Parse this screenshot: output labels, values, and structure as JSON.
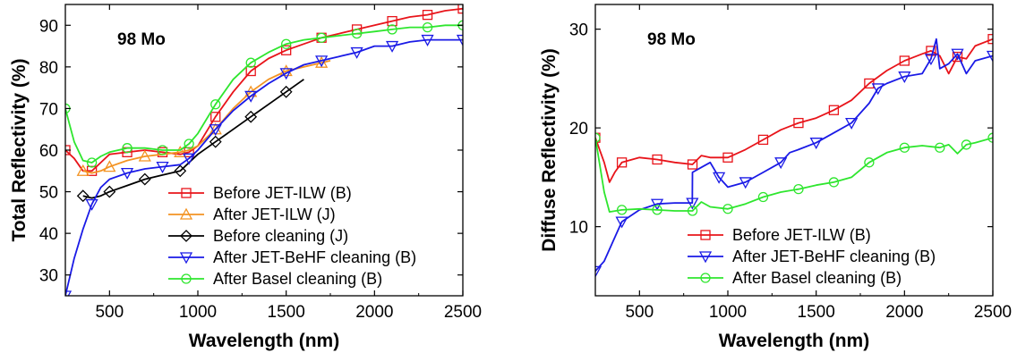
{
  "chart_data": [
    {
      "type": "line",
      "annotation": "98 Mo",
      "xlabel": "Wavelength (nm)",
      "ylabel": "Total Reflectivity (%)",
      "xlim": [
        250,
        2500
      ],
      "ylim": [
        25,
        95
      ],
      "xticks": [
        500,
        1000,
        1500,
        2000,
        2500
      ],
      "yticks": [
        30,
        40,
        50,
        60,
        70,
        80,
        90
      ],
      "legend_position": "lower-right",
      "series": [
        {
          "name": "Before JET-ILW (B)",
          "color": "#e8141a",
          "marker": "square",
          "x": [
            250,
            300,
            350,
            400,
            450,
            500,
            600,
            700,
            800,
            900,
            950,
            1000,
            1100,
            1200,
            1300,
            1400,
            1500,
            1600,
            1700,
            1800,
            1900,
            2000,
            2100,
            2200,
            2300,
            2400,
            2500
          ],
          "y": [
            60,
            58,
            55,
            55,
            57,
            59,
            59.5,
            60,
            59.5,
            59,
            59.5,
            61,
            68,
            74,
            79,
            82,
            84,
            85.5,
            87,
            88,
            89,
            90,
            91,
            92,
            92.5,
            93.5,
            94
          ]
        },
        {
          "name": "After JET-ILW (J)",
          "color": "#f39322",
          "marker": "triangle-up",
          "x": [
            350,
            400,
            450,
            500,
            600,
            700,
            800,
            900,
            950,
            1000,
            1100,
            1200,
            1300,
            1400,
            1500,
            1600,
            1700,
            1750
          ],
          "y": [
            55,
            54.5,
            55,
            56,
            57.5,
            58.5,
            59,
            59.5,
            60,
            61,
            65,
            70,
            74,
            77,
            79,
            80,
            81,
            81.5
          ]
        },
        {
          "name": "Before cleaning (J)",
          "color": "#000000",
          "marker": "diamond",
          "x": [
            350,
            400,
            450,
            500,
            600,
            700,
            800,
            900,
            950,
            1000,
            1100,
            1200,
            1300,
            1400,
            1500,
            1550,
            1600
          ],
          "y": [
            49,
            48.5,
            49,
            50,
            51.5,
            53,
            54,
            55,
            57,
            59,
            62,
            65,
            68,
            71,
            74,
            75.5,
            77
          ]
        },
        {
          "name": "After JET-BeHF cleaning (B)",
          "color": "#1a1ae6",
          "marker": "triangle-down",
          "x": [
            250,
            300,
            350,
            400,
            450,
            500,
            600,
            700,
            800,
            900,
            950,
            1000,
            1100,
            1200,
            1300,
            1400,
            1500,
            1600,
            1700,
            1800,
            1900,
            2000,
            2100,
            2200,
            2300,
            2400,
            2500
          ],
          "y": [
            25,
            34,
            41,
            47,
            51,
            53,
            54.5,
            55.5,
            56,
            56.5,
            58,
            60,
            65,
            69.5,
            73,
            76,
            78.5,
            80.5,
            81.5,
            82.5,
            83.5,
            85,
            85,
            86,
            86.5,
            86.5,
            86.5
          ]
        },
        {
          "name": "After Basel cleaning (B)",
          "color": "#2ee62e",
          "marker": "circle",
          "x": [
            250,
            275,
            300,
            350,
            400,
            450,
            500,
            600,
            700,
            800,
            900,
            950,
            1000,
            1100,
            1200,
            1300,
            1400,
            1500,
            1600,
            1700,
            1800,
            1900,
            2000,
            2100,
            2200,
            2300,
            2400,
            2500
          ],
          "y": [
            70,
            66,
            62,
            57.5,
            57,
            58.5,
            59.5,
            60.5,
            60.5,
            60,
            60,
            61.5,
            64,
            71,
            77,
            81,
            83.5,
            85.5,
            86.5,
            87,
            87.5,
            88,
            88.5,
            89,
            89.5,
            89.5,
            90,
            90
          ]
        }
      ]
    },
    {
      "type": "line",
      "annotation": "98 Mo",
      "xlabel": "Wavelength (nm)",
      "ylabel": "Diffuse Reflectivity (%)",
      "xlim": [
        250,
        2500
      ],
      "ylim": [
        3,
        32.5
      ],
      "xticks": [
        500,
        1000,
        1500,
        2000,
        2500
      ],
      "yticks": [
        10,
        20,
        30
      ],
      "legend_position": "lower-right",
      "series": [
        {
          "name": "Before JET-ILW (B)",
          "color": "#e8141a",
          "marker": "square",
          "x": [
            250,
            300,
            330,
            360,
            400,
            500,
            600,
            700,
            800,
            850,
            900,
            1000,
            1100,
            1200,
            1300,
            1400,
            1500,
            1600,
            1700,
            1800,
            1900,
            2000,
            2100,
            2150,
            2200,
            2250,
            2300,
            2350,
            2400,
            2500
          ],
          "y": [
            19,
            16.5,
            14.5,
            15.5,
            16.5,
            17,
            16.8,
            16.5,
            16.3,
            17.2,
            17,
            17,
            17.8,
            18.8,
            19.8,
            20.5,
            21,
            21.8,
            22.8,
            24.5,
            25.8,
            26.8,
            27.5,
            27.8,
            27.3,
            25.5,
            27.2,
            27,
            28.3,
            29
          ]
        },
        {
          "name": "After JET-BeHF cleaning (B)",
          "color": "#1a1ae6",
          "marker": "triangle-down",
          "x": [
            250,
            300,
            350,
            400,
            500,
            600,
            700,
            799,
            800,
            850,
            900,
            950,
            1000,
            1100,
            1200,
            1300,
            1350,
            1400,
            1500,
            1600,
            1700,
            1800,
            1850,
            1900,
            2000,
            2100,
            2150,
            2180,
            2200,
            2250,
            2300,
            2350,
            2400,
            2500
          ],
          "y": [
            5.5,
            6.5,
            8.5,
            10.5,
            11.7,
            12.3,
            12.4,
            12.4,
            15.5,
            16,
            16.5,
            15,
            14,
            14.5,
            15.5,
            16.5,
            17.5,
            17.8,
            18.5,
            19.5,
            20.5,
            22.5,
            24,
            24.5,
            25.2,
            25.5,
            27,
            29,
            26,
            26.5,
            27.5,
            25.5,
            26.8,
            27.3
          ]
        },
        {
          "name": "After Basel cleaning (B)",
          "color": "#2ee62e",
          "marker": "circle",
          "x": [
            250,
            300,
            330,
            400,
            500,
            600,
            700,
            800,
            850,
            900,
            1000,
            1100,
            1200,
            1300,
            1400,
            1500,
            1600,
            1700,
            1800,
            1900,
            2000,
            2100,
            2200,
            2250,
            2300,
            2350,
            2400,
            2500
          ],
          "y": [
            19,
            13.5,
            11.5,
            11.7,
            11.8,
            11.7,
            11.6,
            11.6,
            12.5,
            12,
            11.8,
            12.3,
            13,
            13.5,
            13.8,
            14.2,
            14.5,
            15,
            16.5,
            17.5,
            18,
            18.2,
            18,
            18.3,
            17.4,
            18.3,
            18.5,
            19
          ]
        }
      ]
    }
  ]
}
